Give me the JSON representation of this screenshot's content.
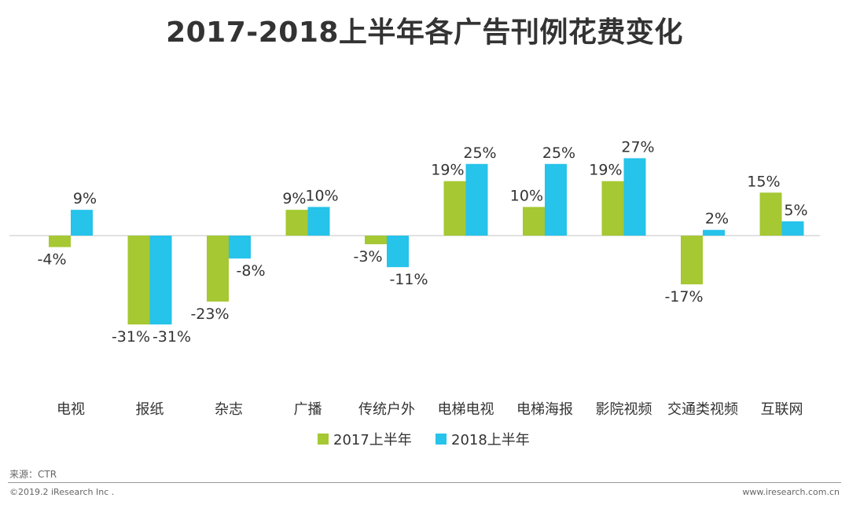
{
  "chart_data": {
    "type": "bar",
    "title": "2017-2018上半年各广告刊例花费变化",
    "xlabel": "",
    "ylabel": "",
    "ylim": [
      -35,
      30
    ],
    "grid": false,
    "legend": "bottom-center",
    "categories": [
      "电视",
      "报纸",
      "杂志",
      "广播",
      "传统户外",
      "电梯电视",
      "电梯海报",
      "影院视频",
      "交通类视频",
      "互联网"
    ],
    "series": [
      {
        "name": "2017上半年",
        "color": "#a5c833",
        "values": [
          -4,
          -31,
          -23,
          9,
          -3,
          19,
          10,
          19,
          -17,
          15
        ],
        "labels": [
          "-4%",
          "-31%",
          "-23%",
          "9%",
          "-3%",
          "19%",
          "10%",
          "19%",
          "-17%",
          "15%"
        ]
      },
      {
        "name": "2018上半年",
        "color": "#26c3ea",
        "values": [
          9,
          -31,
          -8,
          10,
          -11,
          25,
          25,
          27,
          2,
          5
        ],
        "labels": [
          "9%",
          "-31%",
          "-8%",
          "10%",
          "-11%",
          "25%",
          "25%",
          "27%",
          "2%",
          "5%"
        ]
      }
    ]
  },
  "footer": {
    "source": "来源：CTR",
    "copyright": "©2019.2 iResearch Inc .",
    "website": "www.iresearch.com.cn"
  }
}
